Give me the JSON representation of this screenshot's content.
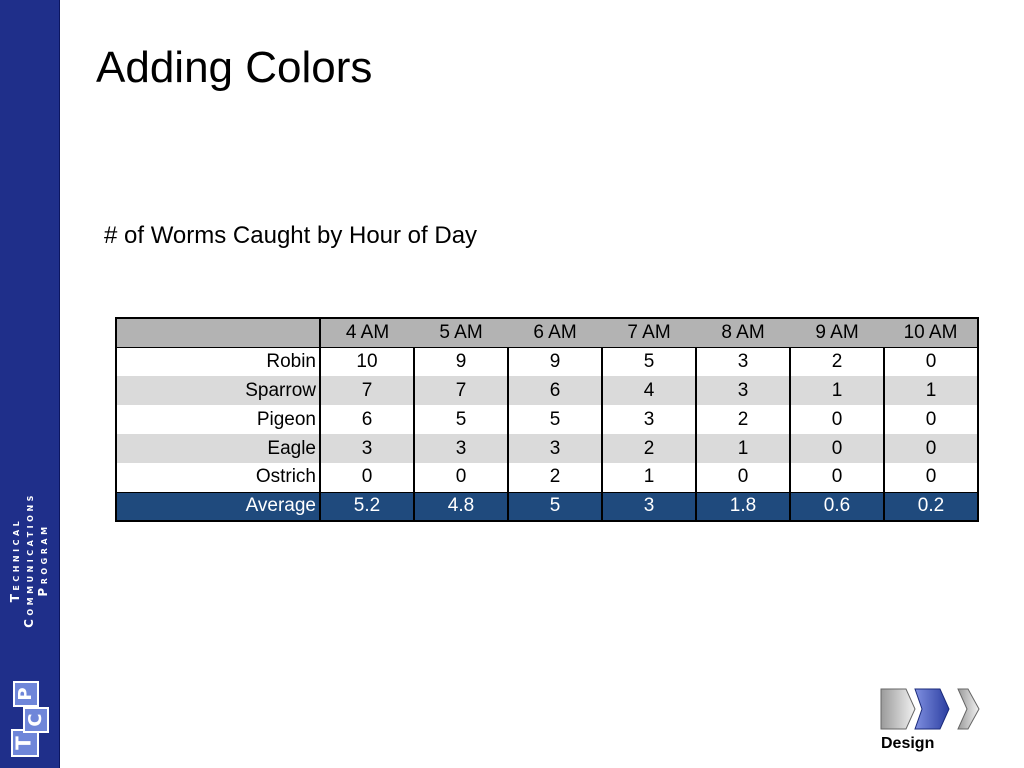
{
  "sidebar": {
    "line1": "Technical",
    "line2": "Communications",
    "line3": "Program",
    "logo_letters": [
      "T",
      "C",
      "P"
    ]
  },
  "slide": {
    "title": "Adding Colors",
    "subtitle": "# of Worms Caught by Hour of Day"
  },
  "table": {
    "corner": "",
    "columns": [
      "4 AM",
      "5 AM",
      "6 AM",
      "7 AM",
      "8 AM",
      "9 AM",
      "10 AM"
    ],
    "rows": [
      {
        "label": "Robin",
        "values": [
          "10",
          "9",
          "9",
          "5",
          "3",
          "2",
          "0"
        ]
      },
      {
        "label": "Sparrow",
        "values": [
          "7",
          "7",
          "6",
          "4",
          "3",
          "1",
          "1"
        ]
      },
      {
        "label": "Pigeon",
        "values": [
          "6",
          "5",
          "5",
          "3",
          "2",
          "0",
          "0"
        ]
      },
      {
        "label": "Eagle",
        "values": [
          "3",
          "3",
          "3",
          "2",
          "1",
          "0",
          "0"
        ]
      },
      {
        "label": "Ostrich",
        "values": [
          "0",
          "0",
          "2",
          "1",
          "0",
          "0",
          "0"
        ]
      }
    ],
    "average": {
      "label": "Average",
      "values": [
        "5.2",
        "4.8",
        "5",
        "3",
        "1.8",
        "0.6",
        "0.2"
      ]
    }
  },
  "nav": {
    "label": "Design",
    "icon": "chevron-progress-icon"
  },
  "colors": {
    "sidebar": "#1f2f8a",
    "header_fill": "#b3b3b3",
    "shade_row": "#dadada",
    "average_fill": "#1f4a7d",
    "chevron_active": "#2b3ea0",
    "chevron_inactive": "#c8c8c8"
  }
}
